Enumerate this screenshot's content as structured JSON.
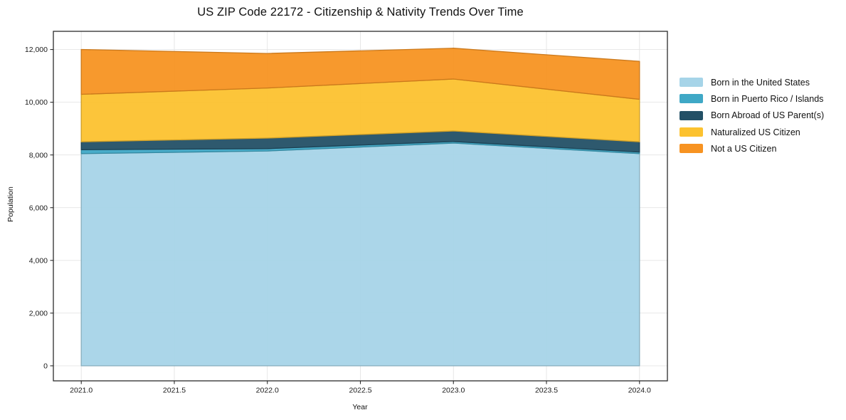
{
  "chart_data": {
    "type": "area",
    "stacked": true,
    "title": "US ZIP Code 22172 - Citizenship & Nativity Trends Over Time",
    "xlabel": "Year",
    "ylabel": "Population",
    "x": [
      2021,
      2022,
      2023,
      2024
    ],
    "series": [
      {
        "name": "Born in the United States",
        "color": "#A6D4E8",
        "values": [
          8050,
          8150,
          8450,
          8050
        ]
      },
      {
        "name": "Born in Puerto Rico / Islands",
        "color": "#3FA8C6",
        "values": [
          150,
          90,
          60,
          60
        ]
      },
      {
        "name": "Born Abroad of US Parent(s)",
        "color": "#235066",
        "values": [
          300,
          400,
          400,
          390
        ]
      },
      {
        "name": "Naturalized US Citizen",
        "color": "#FCC22F",
        "values": [
          1800,
          1900,
          1970,
          1610
        ]
      },
      {
        "name": "Not a US Citizen",
        "color": "#F79322",
        "values": [
          1700,
          1310,
          1170,
          1440
        ]
      }
    ],
    "stack_totals": [
      12000,
      11850,
      12050,
      11550
    ],
    "xticks": [
      2021.0,
      2021.5,
      2022.0,
      2022.5,
      2023.0,
      2023.5,
      2024.0
    ],
    "xtick_labels": [
      "2021.0",
      "2021.5",
      "2022.0",
      "2022.5",
      "2023.0",
      "2023.5",
      "2024.0"
    ],
    "yticks": [
      0,
      2000,
      4000,
      6000,
      8000,
      10000,
      12000
    ],
    "ytick_labels": [
      "0",
      "2,000",
      "4,000",
      "6,000",
      "8,000",
      "10,000",
      "12,000"
    ],
    "xlim": [
      2020.85,
      2024.15
    ],
    "ylim": [
      -570,
      12690
    ],
    "grid": true,
    "legend_position": "right",
    "colors": {
      "spine": "#2b2b2b",
      "grid": "#e4e4e4",
      "tick_label": "#1a1a1a",
      "background": "#ffffff"
    }
  }
}
